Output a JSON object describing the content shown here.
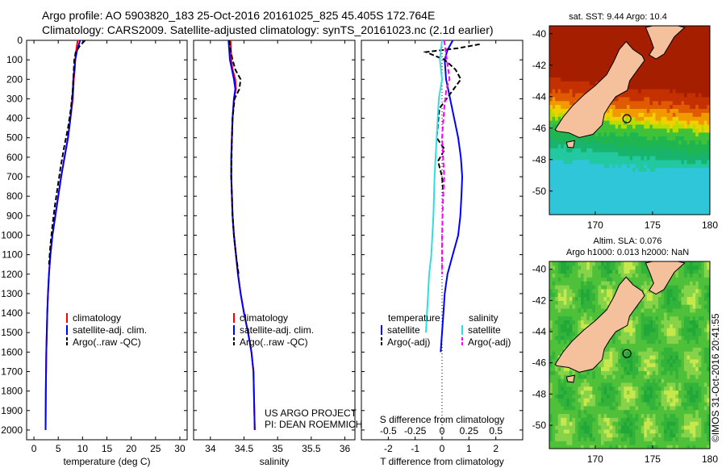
{
  "header": {
    "line1": "Argo profile: AO 5903820_183 25-Oct-2016 20161025_825 45.405S 172.764E",
    "line2": "Climatology: CARS2009. Satellite-adjusted climatology: synTS_20161023.nc (2.1d earlier)"
  },
  "colors": {
    "climatology": "#ff0000",
    "satellite": "#0000ff",
    "argo": "#000000",
    "salinity_satellite": "#33dddd",
    "salinity_argo": "#ff00ff",
    "land": "#f4c19c"
  },
  "chart_data": [
    {
      "type": "line",
      "xlabel": "temperature (deg C)",
      "ylim": [
        2050,
        0
      ],
      "xlim": [
        -1.5,
        31.5
      ],
      "xticks": [
        "0",
        "5",
        "10",
        "15",
        "20",
        "25",
        "30"
      ],
      "yticks": [
        "0",
        "100",
        "200",
        "300",
        "400",
        "500",
        "600",
        "700",
        "800",
        "900",
        "1000",
        "1100",
        "1200",
        "1300",
        "1400",
        "1500",
        "1600",
        "1700",
        "1800",
        "1900",
        "2000"
      ],
      "legend": [
        "climatology",
        "satellite-adj. clim.",
        "Argo(..raw -QC)"
      ],
      "series": [
        {
          "name": "climatology",
          "x": [
            9.0,
            8.7,
            8.5,
            8.4,
            8.2,
            8.0,
            7.5,
            7.0,
            6.3,
            5.6,
            5.0,
            4.4,
            3.8,
            3.4,
            3.1,
            2.9,
            2.75,
            2.65,
            2.55,
            2.5,
            2.45,
            2.4
          ],
          "y": [
            0,
            50,
            100,
            150,
            200,
            300,
            400,
            500,
            600,
            700,
            800,
            900,
            1000,
            1100,
            1200,
            1300,
            1400,
            1500,
            1600,
            1700,
            1800,
            2000
          ]
        },
        {
          "name": "satellite-adj. clim.",
          "x": [
            9.5,
            8.9,
            8.5,
            8.3,
            8.1,
            7.9,
            7.5,
            7.0,
            6.3,
            5.6,
            5.0,
            4.4,
            3.8,
            3.4,
            3.1,
            2.9,
            2.75,
            2.65,
            2.55,
            2.5,
            2.45,
            2.4
          ],
          "y": [
            0,
            50,
            100,
            150,
            200,
            300,
            400,
            500,
            600,
            700,
            800,
            900,
            1000,
            1100,
            1200,
            1300,
            1400,
            1500,
            1600,
            1700,
            1800,
            2000
          ]
        },
        {
          "name": "Argo(..raw -QC)",
          "x": [
            10.5,
            9.4,
            8.6,
            8.3,
            8.2,
            8.0,
            7.6,
            7.0,
            6.2,
            5.5,
            4.9,
            4.3,
            3.8,
            3.4,
            3.1
          ],
          "y": [
            0,
            30,
            60,
            100,
            150,
            250,
            350,
            450,
            550,
            650,
            750,
            850,
            950,
            1050,
            1150
          ]
        }
      ]
    },
    {
      "type": "line",
      "xlabel": "salinity",
      "ylim": [
        2050,
        0
      ],
      "xlim": [
        33.75,
        36.15
      ],
      "xticks": [
        "34",
        "34.5",
        "35",
        "35.5",
        "36"
      ],
      "legend": [
        "climatology",
        "satellite-adj. clim.",
        "Argo(..raw -QC)"
      ],
      "series": [
        {
          "name": "climatology",
          "x": [
            34.3,
            34.31,
            34.33,
            34.37,
            34.38,
            34.35,
            34.33,
            34.32,
            34.31,
            34.31,
            34.32,
            34.33,
            34.35,
            34.38,
            34.41,
            34.45,
            34.5,
            34.56,
            34.61,
            34.64,
            34.66
          ],
          "y": [
            0,
            100,
            150,
            200,
            250,
            300,
            400,
            500,
            600,
            700,
            800,
            900,
            1000,
            1100,
            1200,
            1300,
            1400,
            1500,
            1600,
            1700,
            2000
          ]
        },
        {
          "name": "satellite-adj. clim.",
          "x": [
            34.27,
            34.29,
            34.32,
            34.35,
            34.37,
            34.35,
            34.33,
            34.32,
            34.31,
            34.31,
            34.32,
            34.33,
            34.35,
            34.38,
            34.41,
            34.45,
            34.5,
            34.56,
            34.61,
            34.64,
            34.66
          ],
          "y": [
            0,
            100,
            150,
            200,
            250,
            300,
            400,
            500,
            600,
            700,
            800,
            900,
            1000,
            1100,
            1200,
            1300,
            1400,
            1500,
            1600,
            1700,
            2000
          ]
        },
        {
          "name": "Argo(..raw -QC)",
          "x": [
            34.28,
            34.3,
            34.33,
            34.37,
            34.45,
            34.43,
            34.36,
            34.33,
            34.32,
            34.31,
            34.32,
            34.33,
            34.35,
            34.38,
            34.42
          ],
          "y": [
            0,
            50,
            100,
            150,
            200,
            250,
            300,
            400,
            500,
            700,
            800,
            900,
            1000,
            1100,
            1200
          ]
        }
      ],
      "annotation": {
        "line1": "US ARGO PROJECT",
        "line2": "PI: DEAN ROEMMICH"
      }
    },
    {
      "type": "line",
      "xlabel": "T difference from climatology",
      "xlabel_top": "S difference from climatology",
      "ylim": [
        2050,
        0
      ],
      "xlim": [
        -3.0,
        3.0
      ],
      "xticks": [
        "-2",
        "-1",
        "0",
        "1",
        "2"
      ],
      "xticks_top": [
        "-0.5",
        "-0.25",
        "0",
        "0.25",
        "0.5"
      ],
      "legend_headers": [
        "temperature",
        "salinity"
      ],
      "legend": [
        "satellite",
        "Argo(-adj)",
        "satellite",
        "Argo(-adj)"
      ],
      "series": [
        {
          "name": "T satellite",
          "x": [
            0.4,
            0.2,
            0.1,
            0.15,
            0.3,
            0.45,
            0.6,
            0.7,
            0.75,
            0.72,
            0.68,
            0.6,
            0.4,
            0.2,
            0.1,
            0.05,
            0.0,
            -0.05
          ],
          "y": [
            0,
            50,
            100,
            200,
            300,
            400,
            500,
            600,
            700,
            800,
            900,
            1000,
            1100,
            1200,
            1300,
            1400,
            1500,
            1600
          ]
        },
        {
          "name": "T Argo(-adj)",
          "x": [
            1.4,
            0.6,
            -0.6,
            0.1,
            0.5,
            0.7,
            -0.1,
            -0.2,
            0.1,
            -0.15,
            0.0,
            0.05
          ],
          "y": [
            20,
            40,
            60,
            100,
            150,
            200,
            350,
            500,
            560,
            620,
            700,
            800
          ]
        },
        {
          "name": "S satellite",
          "x": [
            0.0,
            -0.02,
            0.0,
            -0.03,
            -0.05,
            -0.07,
            -0.08,
            -0.09,
            -0.1,
            -0.12,
            -0.13,
            -0.14,
            -0.15
          ],
          "y": [
            0,
            100,
            200,
            300,
            500,
            700,
            900,
            1000,
            1100,
            1200,
            1300,
            1400,
            1500
          ]
        },
        {
          "name": "S Argo(-adj)",
          "x": [
            0.02,
            0.07,
            0.04,
            0.02,
            0.0,
            0.01,
            0.02,
            0.01,
            0.0,
            0.0
          ],
          "y": [
            0,
            200,
            250,
            350,
            500,
            600,
            700,
            800,
            1000,
            1200
          ]
        }
      ]
    },
    {
      "type": "heatmap",
      "title": "sat. SST: 9.44  Argo: 10.4",
      "xlim": [
        166,
        180
      ],
      "ylim": [
        -51.5,
        -39.5
      ],
      "xticks": [
        "170",
        "175",
        "180"
      ],
      "yticks": [
        "-40",
        "-42",
        "-44",
        "-46",
        "-48",
        "-50"
      ],
      "argo_position": {
        "lon": 172.764,
        "lat": -45.405
      }
    },
    {
      "type": "heatmap",
      "title": "Altim. SLA: 0.076",
      "subtitle": "Argo h1000: 0.013 h2000: NaN",
      "xlim": [
        166,
        180
      ],
      "ylim": [
        -51.5,
        -39.5
      ],
      "xticks": [
        "170",
        "175",
        "180"
      ],
      "yticks": [
        "-40",
        "-42",
        "-44",
        "-46",
        "-48",
        "-50"
      ],
      "argo_position": {
        "lon": 172.764,
        "lat": -45.405
      }
    }
  ],
  "footer": {
    "stamp": "©IMOS 31-Oct-2016 20:41:55"
  }
}
